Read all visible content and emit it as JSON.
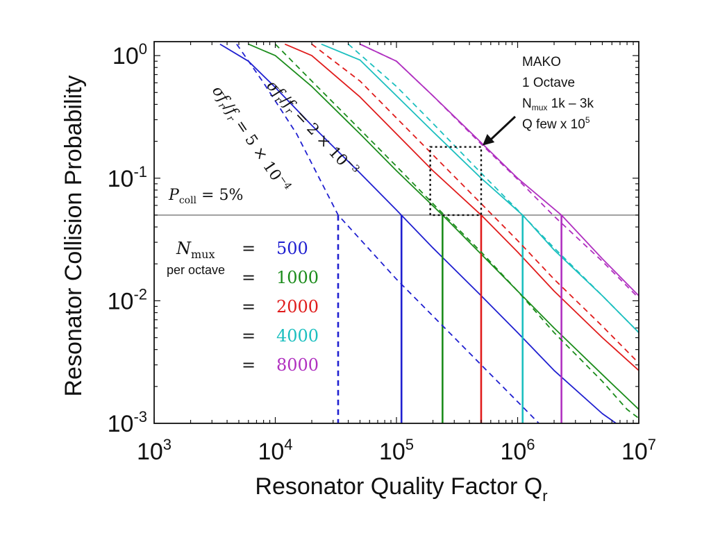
{
  "chart_data": {
    "type": "line",
    "xscale": "log",
    "yscale": "log",
    "xlim": [
      1000,
      10000000
    ],
    "ylim": [
      0.001,
      1.3
    ],
    "xlabel": "Resonator Quality Factor Q",
    "xlabel_sub": "r",
    "ylabel": "Resonator Collision Probability",
    "x_ticks": [
      {
        "value": 1000,
        "base": "10",
        "exp": "3"
      },
      {
        "value": 10000,
        "base": "10",
        "exp": "4"
      },
      {
        "value": 100000,
        "base": "10",
        "exp": "5"
      },
      {
        "value": 1000000,
        "base": "10",
        "exp": "6"
      },
      {
        "value": 10000000,
        "base": "10",
        "exp": "7"
      }
    ],
    "y_ticks": [
      {
        "value": 1,
        "base": "10",
        "exp": "0"
      },
      {
        "value": 0.1,
        "base": "10",
        "exp": "-1"
      },
      {
        "value": 0.01,
        "base": "10",
        "exp": "-2"
      },
      {
        "value": 0.001,
        "base": "10",
        "exp": "-3"
      }
    ],
    "grid": false,
    "threshold": {
      "value": 0.05,
      "label_var": "P",
      "label_sub": "coll",
      "label_rest": " = 5%"
    },
    "series": [
      {
        "name": "500",
        "color": "#1f1fd0",
        "style": "solid",
        "cross_x": 110000,
        "points": [
          [
            3500,
            1.24
          ],
          [
            6000,
            0.9
          ],
          [
            10000,
            0.55
          ],
          [
            20000,
            0.27
          ],
          [
            50000,
            0.11
          ],
          [
            100000,
            0.055
          ],
          [
            200000,
            0.027
          ],
          [
            500000,
            0.011
          ],
          [
            1000000,
            0.0055
          ],
          [
            2000000,
            0.0027
          ],
          [
            5000000,
            0.0012
          ],
          [
            6500000,
            0.001
          ]
        ]
      },
      {
        "name": "1000",
        "color": "#1b8c1b",
        "style": "solid",
        "cross_x": 240000,
        "points": [
          [
            6000,
            1.24
          ],
          [
            10000,
            1.0
          ],
          [
            20000,
            0.56
          ],
          [
            50000,
            0.23
          ],
          [
            100000,
            0.115
          ],
          [
            240000,
            0.05
          ],
          [
            500000,
            0.024
          ],
          [
            1000000,
            0.012
          ],
          [
            2000000,
            0.006
          ],
          [
            5000000,
            0.0025
          ],
          [
            10000000,
            0.0013
          ]
        ]
      },
      {
        "name": "2000",
        "color": "#e01b1b",
        "style": "solid",
        "cross_x": 500000,
        "points": [
          [
            12000,
            1.24
          ],
          [
            20000,
            1.0
          ],
          [
            50000,
            0.46
          ],
          [
            100000,
            0.23
          ],
          [
            200000,
            0.115
          ],
          [
            500000,
            0.05
          ],
          [
            1000000,
            0.025
          ],
          [
            2000000,
            0.012
          ],
          [
            5000000,
            0.005
          ],
          [
            10000000,
            0.0027
          ]
        ]
      },
      {
        "name": "4000",
        "color": "#1bbfbf",
        "style": "solid",
        "cross_x": 1100000,
        "points": [
          [
            24000,
            1.24
          ],
          [
            50000,
            0.92
          ],
          [
            100000,
            0.47
          ],
          [
            200000,
            0.24
          ],
          [
            500000,
            0.1
          ],
          [
            1100000,
            0.05
          ],
          [
            2000000,
            0.026
          ],
          [
            5000000,
            0.011
          ],
          [
            10000000,
            0.0055
          ]
        ]
      },
      {
        "name": "8000",
        "color": "#b030c0",
        "style": "solid",
        "cross_x": 2300000,
        "points": [
          [
            50000,
            1.24
          ],
          [
            100000,
            0.9
          ],
          [
            200000,
            0.47
          ],
          [
            500000,
            0.195
          ],
          [
            1000000,
            0.1
          ],
          [
            2300000,
            0.05
          ],
          [
            5000000,
            0.022
          ],
          [
            10000000,
            0.011
          ]
        ]
      },
      {
        "name": "",
        "color": "#1f1fd0",
        "style": "dashed",
        "cross_x": 33000,
        "points": [
          [
            4800,
            1.24
          ],
          [
            8000,
            0.6
          ],
          [
            15000,
            0.23
          ],
          [
            33000,
            0.05
          ],
          [
            100000,
            0.015
          ],
          [
            300000,
            0.005
          ],
          [
            1000000,
            0.0015
          ],
          [
            1500000,
            0.001
          ]
        ]
      },
      {
        "name": "",
        "color": "#1b8c1b",
        "style": "dashed",
        "points": [
          [
            10000,
            1.24
          ],
          [
            20000,
            0.62
          ],
          [
            50000,
            0.25
          ],
          [
            100000,
            0.125
          ],
          [
            200000,
            0.062
          ],
          [
            500000,
            0.025
          ],
          [
            1000000,
            0.012
          ],
          [
            2000000,
            0.0055
          ],
          [
            5000000,
            0.0022
          ],
          [
            8000000,
            0.0013
          ],
          [
            10000000,
            0.0011
          ]
        ]
      },
      {
        "name": "",
        "color": "#e01b1b",
        "style": "dashed",
        "points": [
          [
            20000,
            1.24
          ],
          [
            50000,
            0.62
          ],
          [
            100000,
            0.31
          ],
          [
            200000,
            0.155
          ],
          [
            500000,
            0.062
          ],
          [
            1000000,
            0.031
          ],
          [
            2000000,
            0.015
          ],
          [
            5000000,
            0.0062
          ],
          [
            10000000,
            0.0031
          ]
        ]
      },
      {
        "name": "",
        "color": "#1bbfbf",
        "style": "dashed",
        "points": [
          [
            40000,
            1.24
          ],
          [
            100000,
            0.56
          ],
          [
            200000,
            0.28
          ],
          [
            500000,
            0.11
          ],
          [
            1000000,
            0.055
          ],
          [
            2000000,
            0.027
          ],
          [
            5000000,
            0.011
          ],
          [
            10000000,
            0.0055
          ]
        ]
      },
      {
        "name": "",
        "color": "#b030c0",
        "style": "dashed",
        "points": [
          [
            50000,
            1.24
          ],
          [
            100000,
            0.9
          ],
          [
            200000,
            0.47
          ],
          [
            500000,
            0.19
          ],
          [
            1000000,
            0.098
          ],
          [
            2000000,
            0.049
          ],
          [
            5000000,
            0.021
          ],
          [
            10000000,
            0.0105
          ]
        ]
      }
    ],
    "legend": {
      "placement": "left",
      "var": "N",
      "var_sub": "mux",
      "per_label": "per octave",
      "equals": "=",
      "entries": [
        {
          "value": "500",
          "color": "#1f1fd0"
        },
        {
          "value": "1000",
          "color": "#1b8c1b"
        },
        {
          "value": "2000",
          "color": "#e01b1b"
        },
        {
          "value": "4000",
          "color": "#1bbfbf"
        },
        {
          "value": "8000",
          "color": "#b030c0"
        }
      ]
    },
    "curve_labels": [
      {
        "sigma": "σ",
        "f": "f",
        "sub": "r",
        "slash": "/",
        "rest": " = 5 × 10",
        "exp": "−4"
      },
      {
        "sigma": "σ",
        "f": "f",
        "sub": "r",
        "slash": "/",
        "rest": " = 2 × 10",
        "exp": "−3"
      }
    ],
    "highlight_box": {
      "x0": 190000,
      "x1": 500000,
      "y0": 0.05,
      "y1": 0.18
    },
    "annotation": {
      "line1": "MAKO",
      "line2": "1 Octave",
      "line3_main": "N",
      "line3_sub": "mux",
      "line3_rest": " 1k – 3k",
      "line4_main": "Q few x 10",
      "line4_sup": "5",
      "arrow_to": {
        "x": 500000,
        "y": 0.18
      }
    }
  }
}
